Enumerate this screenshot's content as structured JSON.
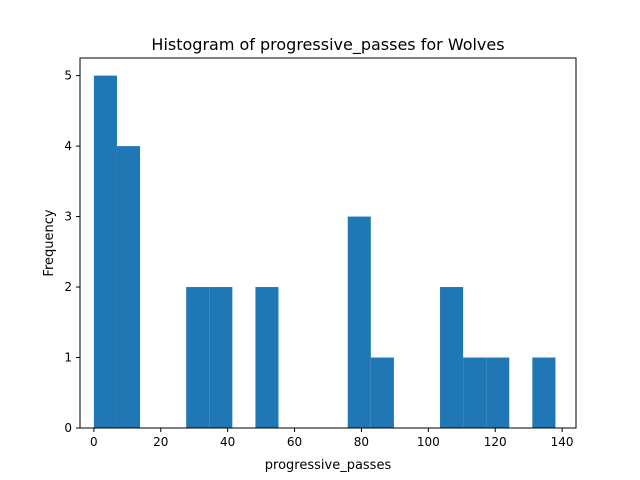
{
  "chart_data": {
    "type": "bar",
    "title": "Histogram of progressive_passes for Wolves",
    "xlabel": "progressive_passes",
    "ylabel": "Frequency",
    "bar_color": "#1f77b4",
    "xlim": [
      -4.15,
      144.15
    ],
    "ylim": [
      0,
      5.25
    ],
    "x_ticks": [
      0,
      20,
      40,
      60,
      80,
      100,
      120,
      140
    ],
    "y_ticks": [
      0,
      1,
      2,
      3,
      4,
      5
    ],
    "bin_edges": [
      0,
      6.9,
      13.8,
      20.7,
      27.6,
      34.5,
      41.4,
      48.3,
      55.2,
      62.1,
      69,
      75.9,
      82.8,
      89.7,
      96.6,
      103.5,
      110.4,
      117.3,
      124.2,
      131.1,
      138
    ],
    "values": [
      5,
      4,
      0,
      0,
      2,
      2,
      0,
      2,
      0,
      0,
      0,
      3,
      1,
      0,
      0,
      2,
      1,
      1,
      0,
      1
    ]
  }
}
